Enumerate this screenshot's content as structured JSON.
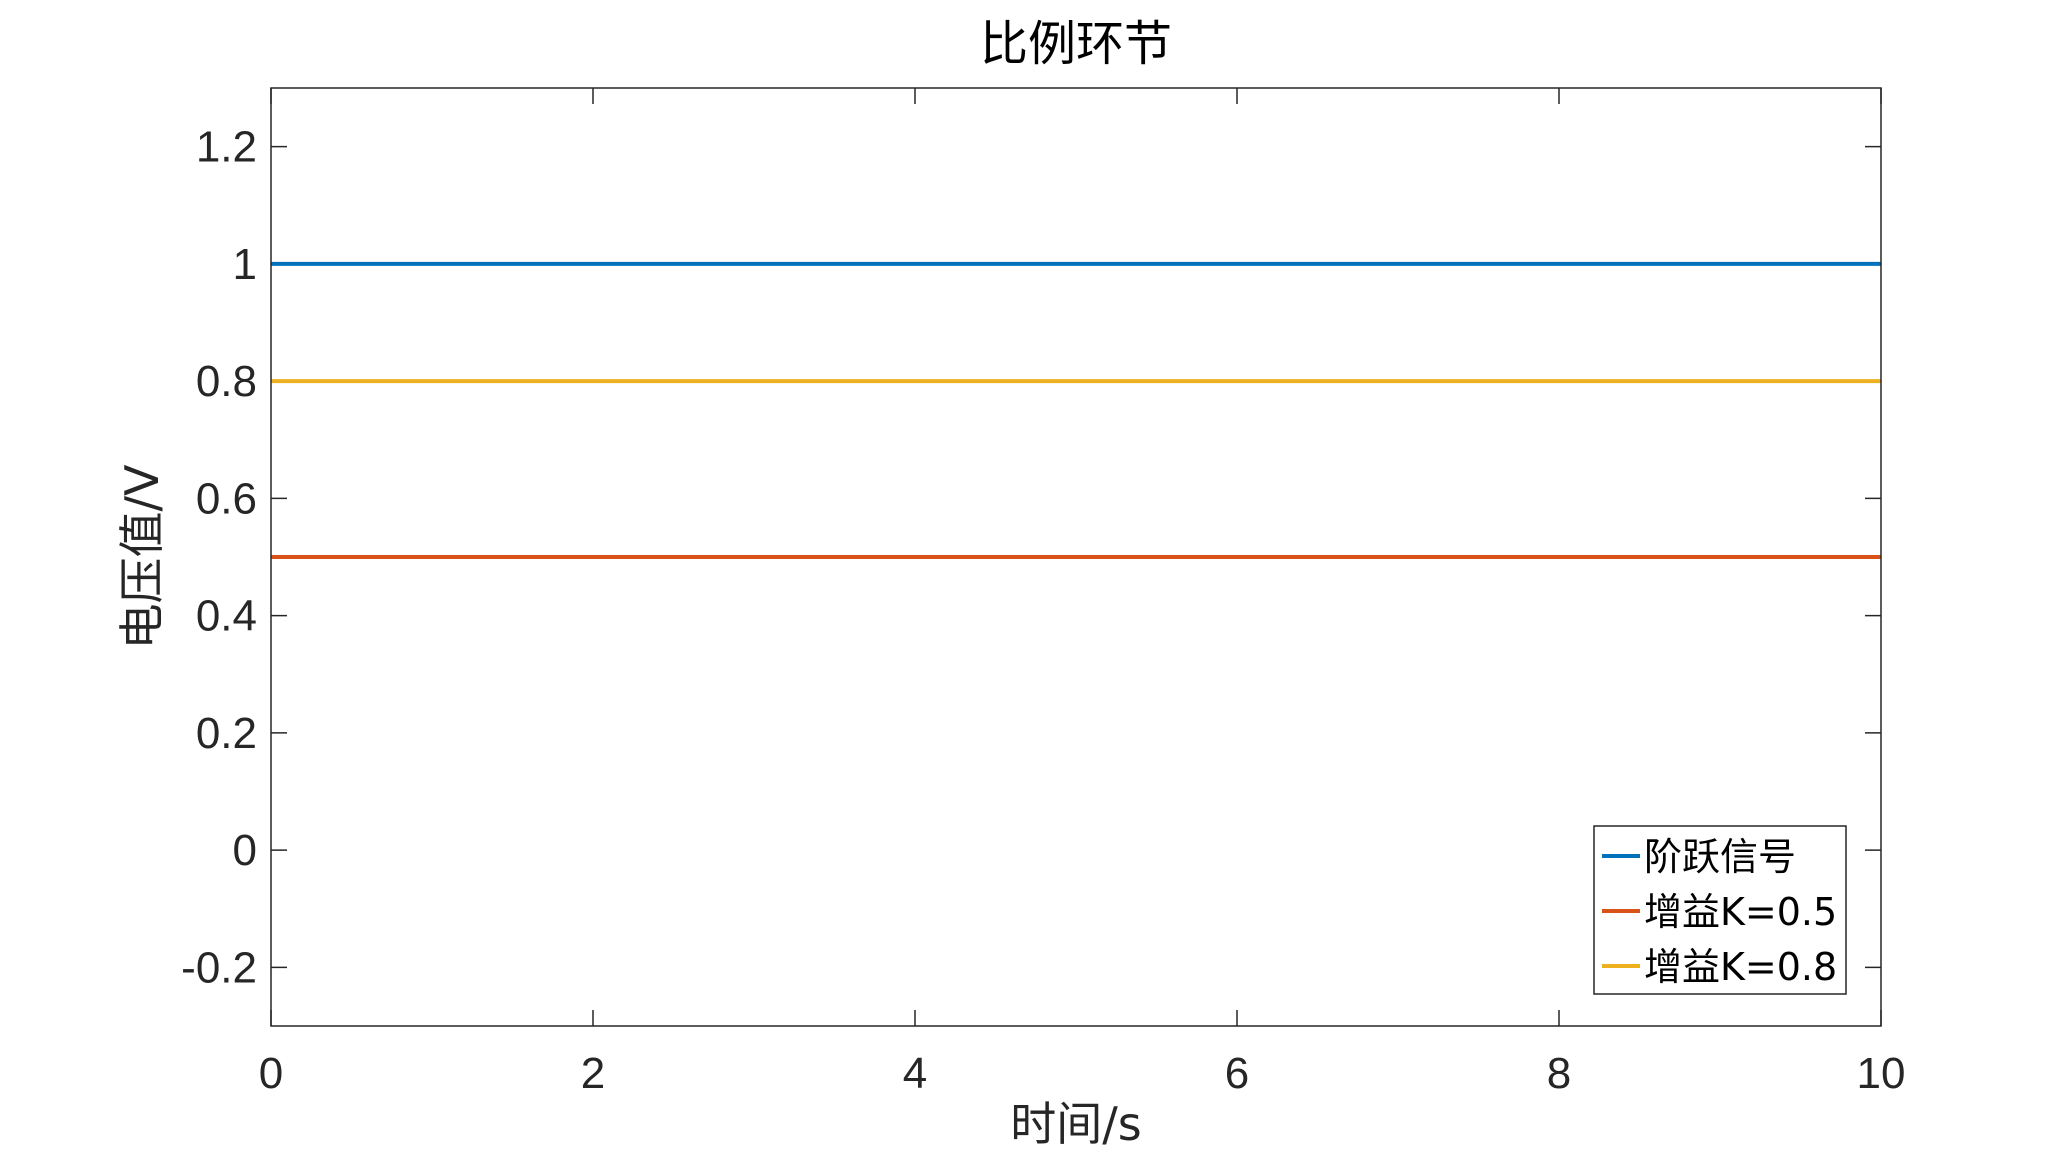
{
  "chart_data": {
    "type": "line",
    "title": "比例环节",
    "xlabel": "时间/s",
    "ylabel": "电压值/V",
    "xlim": [
      0,
      10
    ],
    "ylim": [
      -0.3,
      1.3
    ],
    "xticks": [
      0,
      2,
      4,
      6,
      8,
      10
    ],
    "xtick_labels": [
      "0",
      "2",
      "4",
      "6",
      "8",
      "10"
    ],
    "yticks": [
      -0.2,
      0,
      0.2,
      0.4,
      0.6,
      0.8,
      1,
      1.2
    ],
    "ytick_labels": [
      "-0.2",
      "0",
      "0.2",
      "0.4",
      "0.6",
      "0.8",
      "1",
      "1.2"
    ],
    "grid": false,
    "legend_position": "bottom-right",
    "series": [
      {
        "name": "阶跃信号",
        "color": "#0072BD",
        "x": [
          0,
          10
        ],
        "y": [
          1,
          1
        ]
      },
      {
        "name": "增益K=0.5",
        "color": "#D95319",
        "x": [
          0,
          10
        ],
        "y": [
          0.5,
          0.5
        ]
      },
      {
        "name": "增益K=0.8",
        "color": "#EDB120",
        "x": [
          0,
          10
        ],
        "y": [
          0.8,
          0.8
        ]
      }
    ]
  }
}
